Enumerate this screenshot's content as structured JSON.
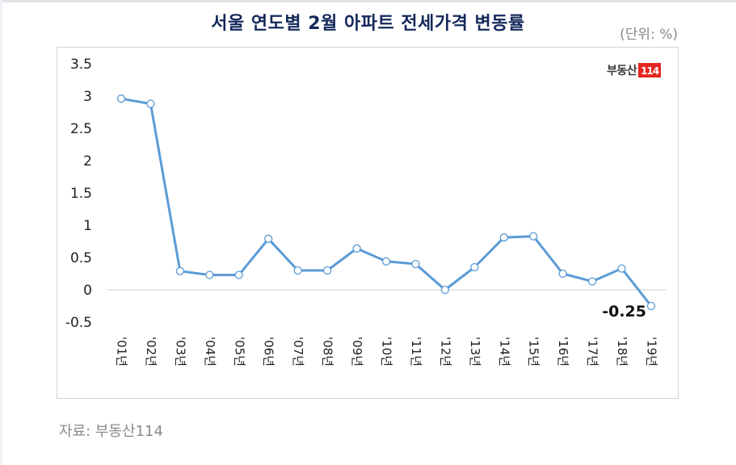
{
  "header": {
    "title": "서울 연도별 2월 아파트 전세가격 변동률",
    "unit": "(단위: %)"
  },
  "logo": {
    "text": "부동산",
    "badge": "114",
    "badge_color": "#e52620"
  },
  "footer": {
    "source": "자료: 부동산114"
  },
  "colors": {
    "line": "#5b9bd5",
    "marker_fill": "#ffffff",
    "title": "#14295a",
    "zero_line": "#d9d9d9"
  },
  "chart_data": {
    "type": "line",
    "title": "서울 연도별 2월 아파트 전세가격 변동률",
    "subtitle": "(단위: %)",
    "xlabel": "",
    "ylabel": "",
    "categories": [
      "'01년",
      "'02년",
      "'03년",
      "'04년",
      "'05년",
      "'06년",
      "'07년",
      "'08년",
      "'09년",
      "'10년",
      "'11년",
      "'12년",
      "'13년",
      "'14년",
      "'15년",
      "'16년",
      "'17년",
      "'18년",
      "'19년"
    ],
    "series": [
      {
        "name": "서울 2월 아파트 전세가격 변동률",
        "values": [
          2.96,
          2.88,
          0.29,
          0.23,
          0.23,
          0.79,
          0.3,
          0.3,
          0.64,
          0.44,
          0.4,
          0.0,
          0.35,
          0.81,
          0.83,
          0.25,
          0.13,
          0.33,
          -0.25
        ]
      }
    ],
    "yticks": [
      "3.5",
      "3",
      "2.5",
      "2",
      "1.5",
      "1",
      "0.5",
      "0",
      "-0.5"
    ],
    "ylim": [
      -0.5,
      3.5
    ],
    "grid": false,
    "legend": "none",
    "annotations": [
      {
        "category": "'19년",
        "text": "-0.25"
      }
    ],
    "source": "자료: 부동산114"
  }
}
